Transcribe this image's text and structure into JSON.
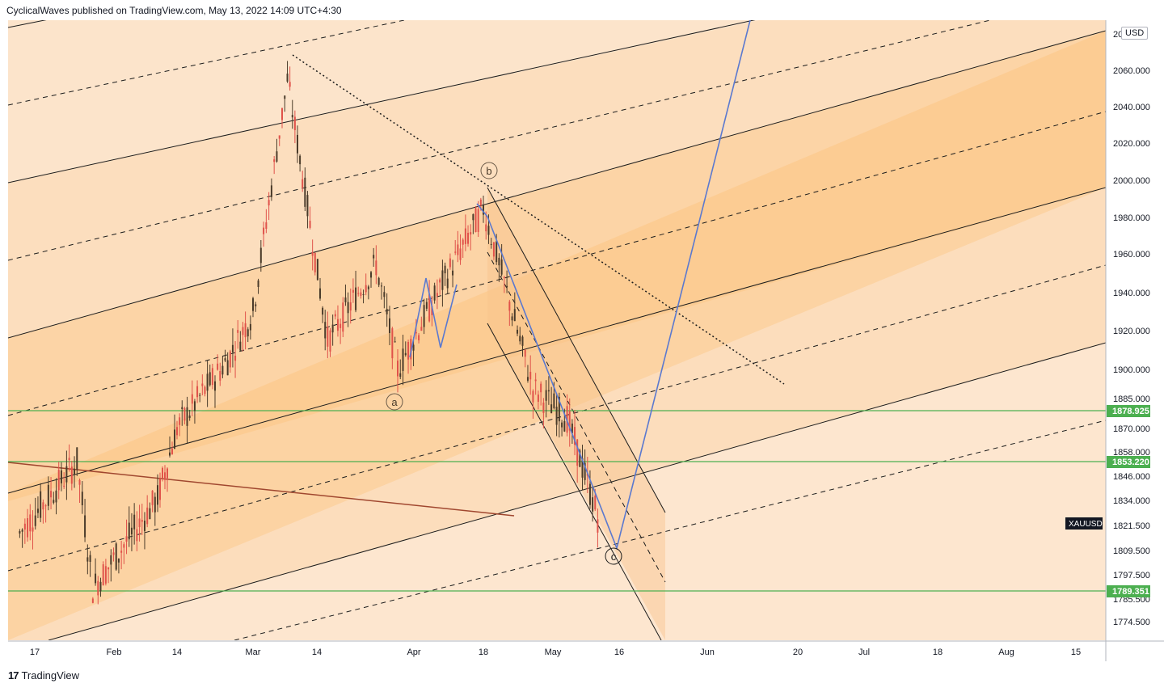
{
  "header": {
    "publisher_line": "CyclicalWaves published on TradingView.com, May 13, 2022 14:09 UTC+4:30"
  },
  "footer": {
    "logo_text": "TradingView",
    "logo_mark": "17"
  },
  "currency_label": "USD",
  "symbol_badge": "XAUUSD",
  "colors": {
    "band_light": "#fce4cb",
    "band_mid": "#fcd9b3",
    "band_dark": "#fbc78f",
    "candle_up": "#4a3b2a",
    "candle_down": "#e0524a",
    "horizontal_level": "#4caf50",
    "projection": "#5b79cf",
    "trend_brown": "#a0472f"
  },
  "chart_data": {
    "type": "candlestick",
    "symbol": "XAUUSD",
    "y_axis_ticks": [
      "2060.000",
      "2040.000",
      "2020.000",
      "2000.000",
      "1980.000",
      "1960.000",
      "1940.000",
      "1920.000",
      "1900.000",
      "1885.000",
      "1870.000",
      "1858.000",
      "1846.000",
      "1834.000",
      "1821.500",
      "1809.500",
      "1797.500",
      "1785.500",
      "1774.500"
    ],
    "y_axis_top_partial": "20",
    "x_axis_ticks": [
      "17",
      "Feb",
      "14",
      "Mar",
      "14",
      "Apr",
      "18",
      "May",
      "16",
      "Jun",
      "20",
      "Jul",
      "18",
      "Aug",
      "15"
    ],
    "horizontal_levels": [
      {
        "label": "1878.925",
        "value": 1878.925
      },
      {
        "label": "1853.220",
        "value": 1853.22
      },
      {
        "label": "1789.351",
        "value": 1789.351
      }
    ],
    "wave_labels": [
      "a",
      "b",
      "c"
    ],
    "approx_ohlc_path": [
      {
        "date": "2022-01-14",
        "close": 1818
      },
      {
        "date": "2022-01-25",
        "close": 1853
      },
      {
        "date": "2022-01-28",
        "close": 1791
      },
      {
        "date": "2022-02-10",
        "close": 1835
      },
      {
        "date": "2022-02-14",
        "close": 1870
      },
      {
        "date": "2022-02-24",
        "close": 1905
      },
      {
        "date": "2022-03-01",
        "close": 1930
      },
      {
        "date": "2022-03-08",
        "close": 2055
      },
      {
        "date": "2022-03-16",
        "close": 1915
      },
      {
        "date": "2022-03-25",
        "close": 1955
      },
      {
        "date": "2022-03-29",
        "close": 1900
      },
      {
        "date": "2022-04-08",
        "close": 1945
      },
      {
        "date": "2022-04-18",
        "close": 1985
      },
      {
        "date": "2022-04-28",
        "close": 1890
      },
      {
        "date": "2022-05-05",
        "close": 1875
      },
      {
        "date": "2022-05-12",
        "close": 1822
      }
    ]
  }
}
